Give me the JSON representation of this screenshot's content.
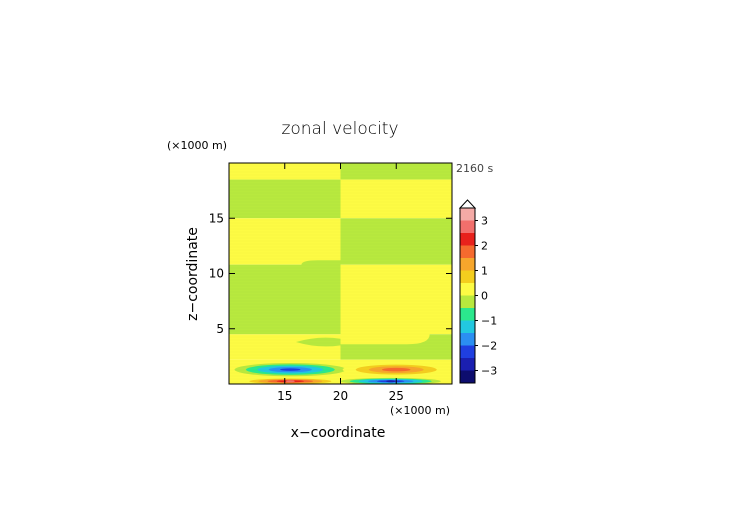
{
  "chart_data": {
    "type": "heatmap",
    "title": "zonal velocity",
    "time_label": "2160 s",
    "xlabel": "x−coordinate",
    "ylabel": "z−coordinate",
    "x_unit": "(×1000 m)",
    "y_unit": "(×1000 m)",
    "xlim": [
      10,
      30
    ],
    "ylim": [
      0,
      20
    ],
    "x_ticks": [
      {
        "value": 15,
        "label": "15"
      },
      {
        "value": 20,
        "label": "20"
      },
      {
        "value": 25,
        "label": "25"
      }
    ],
    "y_ticks": [
      {
        "value": 5,
        "label": "5"
      },
      {
        "value": 10,
        "label": "10"
      },
      {
        "value": 15,
        "label": "15"
      }
    ],
    "field_regions": [
      {
        "x": [
          10,
          20
        ],
        "z": [
          18.5,
          20
        ],
        "level": 0.25
      },
      {
        "x": [
          20,
          30
        ],
        "z": [
          18.5,
          20
        ],
        "level": -0.25
      },
      {
        "x": [
          10,
          20
        ],
        "z": [
          15,
          18.5
        ],
        "level": -0.25
      },
      {
        "x": [
          20,
          30
        ],
        "z": [
          15,
          18.5
        ],
        "level": 0.25
      },
      {
        "x": [
          10,
          20
        ],
        "z": [
          10.8,
          15
        ],
        "level": 0.25
      },
      {
        "x": [
          20,
          30
        ],
        "z": [
          10.8,
          15
        ],
        "level": -0.25
      },
      {
        "x": [
          10,
          20
        ],
        "z": [
          4.5,
          10.8
        ],
        "level": -0.25
      },
      {
        "x": [
          20,
          30
        ],
        "z": [
          4.5,
          10.8
        ],
        "level": 0.25
      },
      {
        "x": [
          10,
          20
        ],
        "z": [
          2.2,
          4.5
        ],
        "level": 0.25
      },
      {
        "x": [
          20,
          30
        ],
        "z": [
          2.2,
          4.5
        ],
        "level": -0.25
      }
    ],
    "jet_cores": [
      {
        "x_center": 15.5,
        "z_center": 1.3,
        "x_halfwidth": 5.0,
        "z_halfwidth": 0.6,
        "peak": -2.2
      },
      {
        "x_center": 25,
        "z_center": 1.3,
        "x_halfwidth": 4.8,
        "z_halfwidth": 0.6,
        "peak": 1.8
      },
      {
        "x_center": 15.5,
        "z_center": 0.25,
        "x_halfwidth": 4.5,
        "z_halfwidth": 0.3,
        "peak": 2.5
      },
      {
        "x_center": 24.5,
        "z_center": 0.25,
        "x_halfwidth": 4.5,
        "z_halfwidth": 0.3,
        "peak": -2.5
      }
    ],
    "colorbar": {
      "labels": [
        {
          "value": 3,
          "label": "3"
        },
        {
          "value": 2,
          "label": "2"
        },
        {
          "value": 1,
          "label": "1"
        },
        {
          "value": 0,
          "label": "0"
        },
        {
          "value": -1,
          "label": "−1"
        },
        {
          "value": -2,
          "label": "−2"
        },
        {
          "value": -3,
          "label": "−3"
        }
      ],
      "levels": [
        {
          "min": 3.0,
          "max": 3.5,
          "color": "#f4aaa6"
        },
        {
          "min": 2.5,
          "max": 3.0,
          "color": "#f26f6c"
        },
        {
          "min": 2.0,
          "max": 2.5,
          "color": "#e8211c"
        },
        {
          "min": 1.5,
          "max": 2.0,
          "color": "#f56a2e"
        },
        {
          "min": 1.0,
          "max": 1.5,
          "color": "#f6a62c"
        },
        {
          "min": 0.5,
          "max": 1.0,
          "color": "#f4ce1e"
        },
        {
          "min": 0.0,
          "max": 0.5,
          "color": "#fdfb44"
        },
        {
          "min": -0.5,
          "max": 0.0,
          "color": "#b8e93e"
        },
        {
          "min": -1.0,
          "max": -0.5,
          "color": "#2be88d"
        },
        {
          "min": -1.5,
          "max": -1.0,
          "color": "#22c8e0"
        },
        {
          "min": -2.0,
          "max": -1.5,
          "color": "#2b8ff2"
        },
        {
          "min": -2.5,
          "max": -2.0,
          "color": "#1f3fe0"
        },
        {
          "min": -3.0,
          "max": -2.5,
          "color": "#1a1fb0"
        },
        {
          "min": -3.5,
          "max": -3.0,
          "color": "#0d0d6e"
        }
      ]
    }
  }
}
